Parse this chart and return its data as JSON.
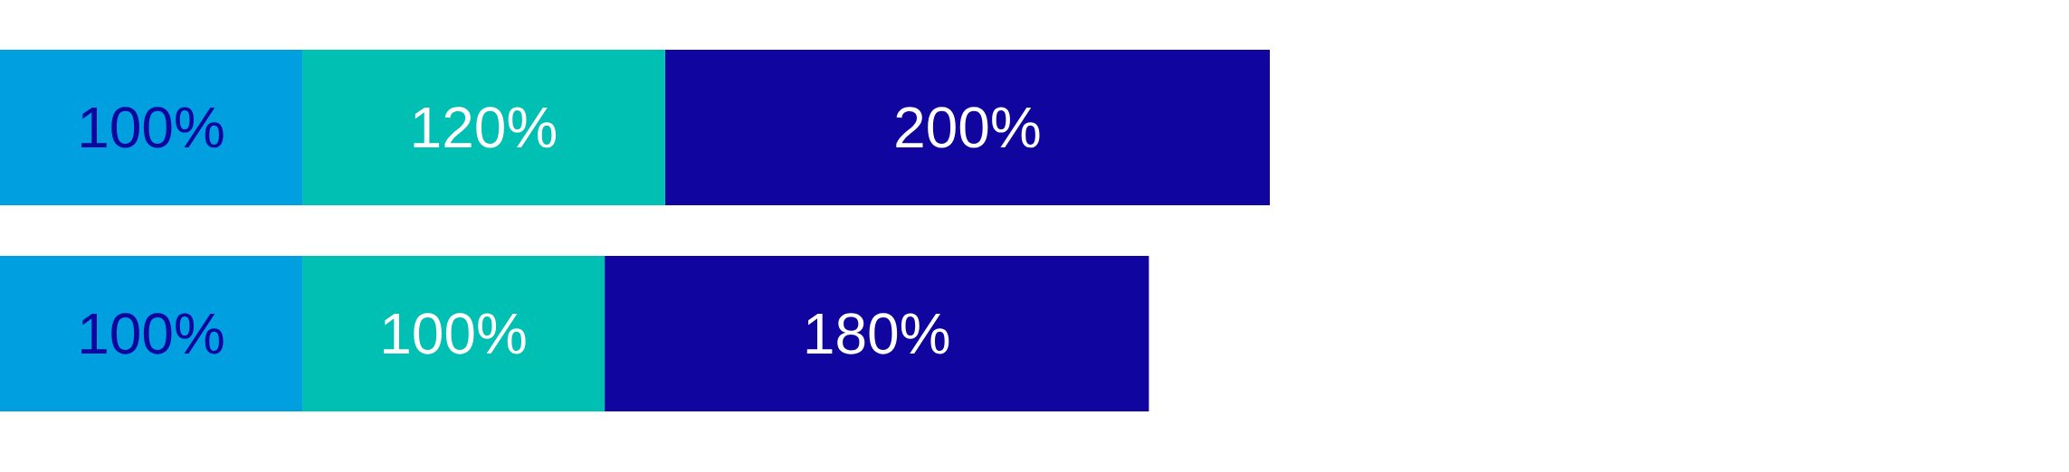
{
  "chart_data": {
    "type": "bar",
    "orientation": "horizontal",
    "stacked": true,
    "categories": [
      null,
      null
    ],
    "series": [
      {
        "color": "#00a0e0",
        "values": [
          100,
          100
        ],
        "value_labels": [
          "100%",
          "100%"
        ]
      },
      {
        "color": "#00bfb3",
        "values": [
          120,
          100
        ],
        "value_labels": [
          "120%",
          "100%"
        ]
      },
      {
        "color": "#10069f",
        "values": [
          200,
          180
        ],
        "value_labels": [
          "200%",
          "180%"
        ]
      }
    ]
  }
}
